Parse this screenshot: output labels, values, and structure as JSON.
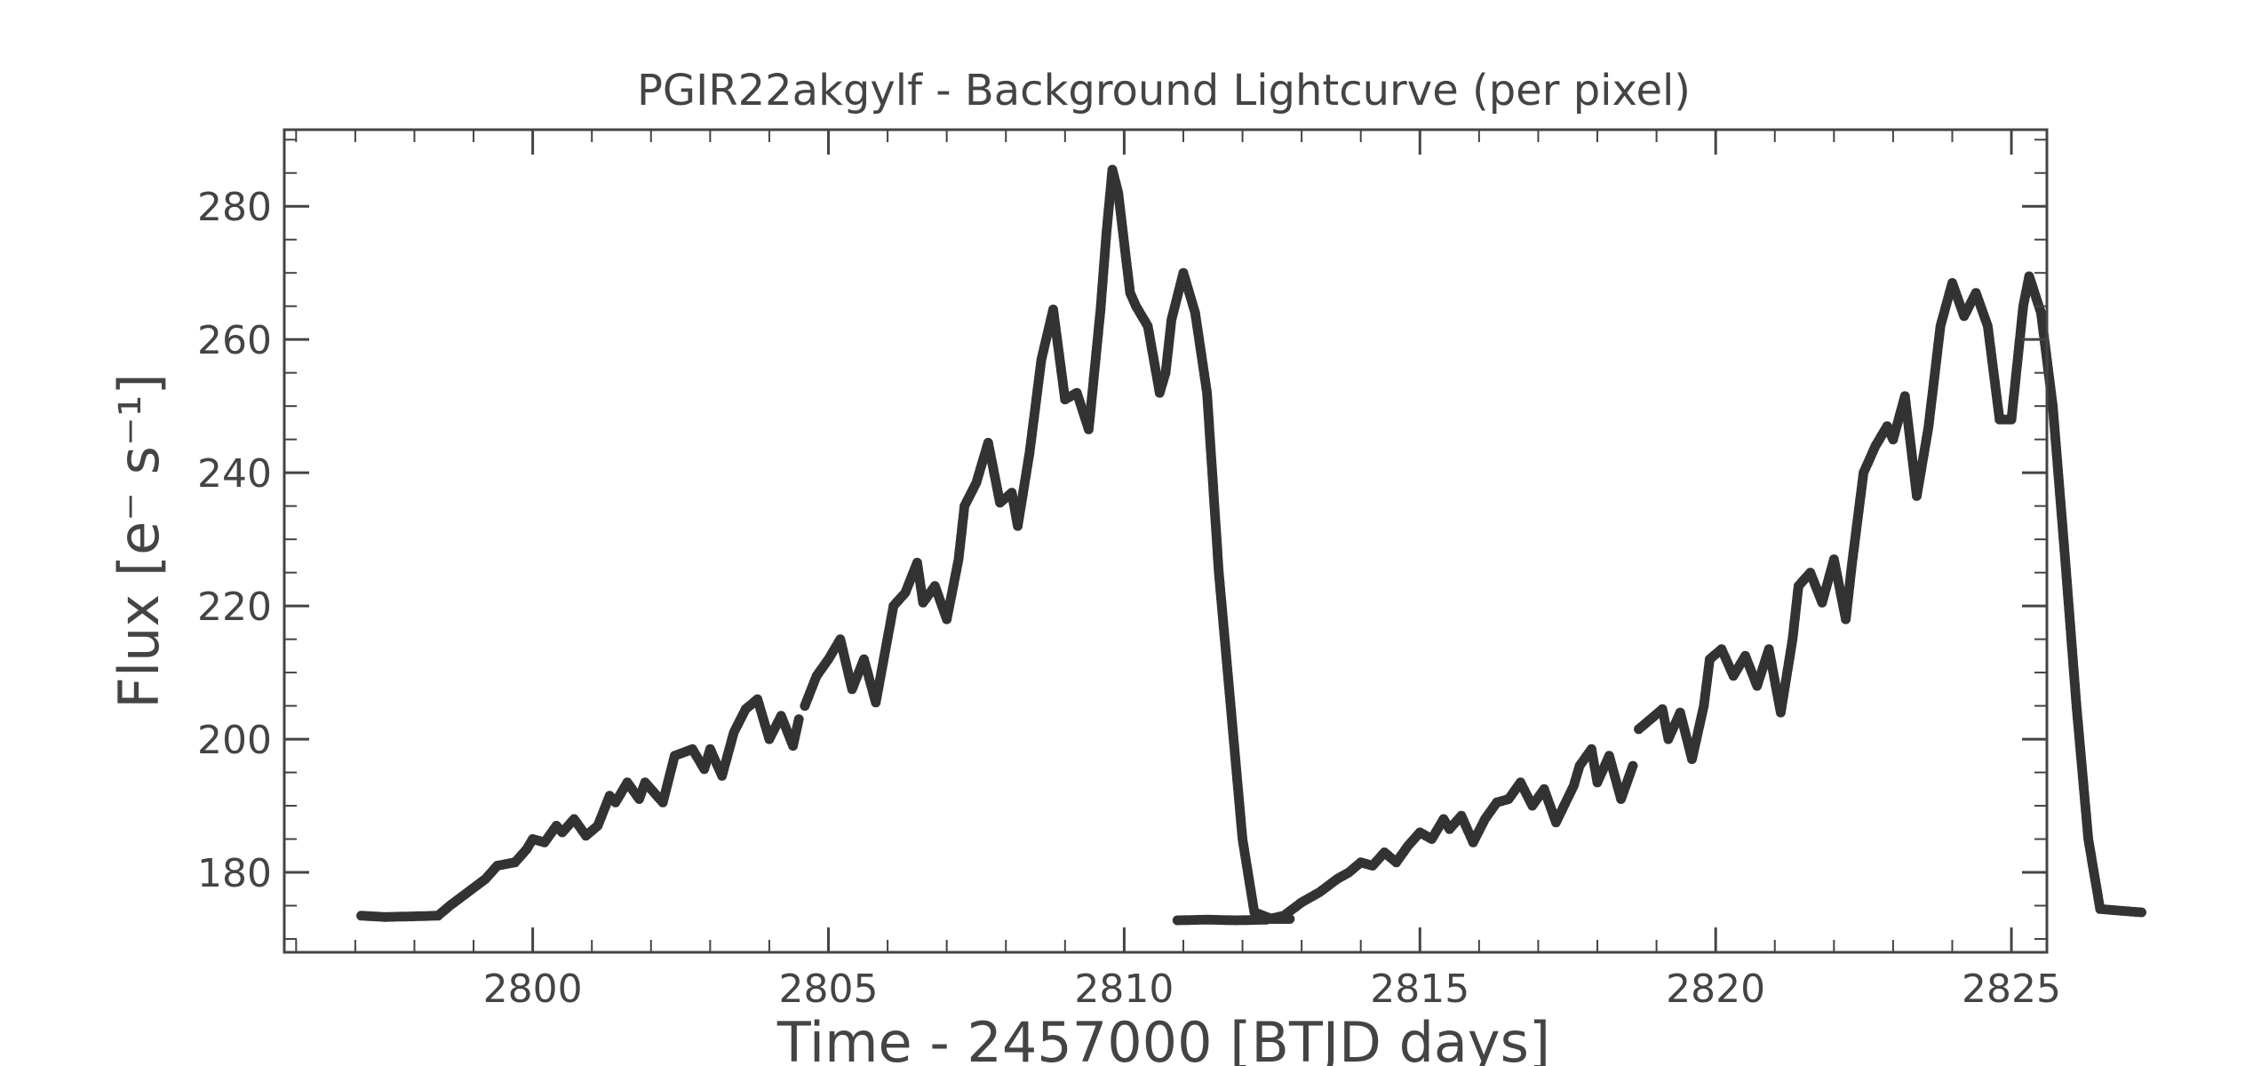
{
  "chart_data": {
    "type": "scatter",
    "title": "PGIR22akgylf  - Background Lightcurve (per pixel)",
    "xlabel": "Time - 2457000 [BTJD days]",
    "ylabel": "Flux [e⁻ s⁻¹]",
    "xlim": [
      2795.8,
      2825.6
    ],
    "ylim": [
      168,
      291.5
    ],
    "x_ticks": [
      2800,
      2805,
      2810,
      2815,
      2820,
      2825
    ],
    "y_ticks": [
      180,
      200,
      220,
      240,
      260,
      280
    ],
    "grid": false,
    "marker_color": "#333333",
    "series": [
      {
        "segments": [
          [
            [
              2797.1,
              173.5
            ],
            [
              2797.5,
              173.3
            ],
            [
              2798.0,
              173.4
            ],
            [
              2798.4,
              173.5
            ],
            [
              2798.6,
              175.0
            ],
            [
              2798.9,
              177.0
            ],
            [
              2799.2,
              179.0
            ],
            [
              2799.4,
              181.0
            ],
            [
              2799.7,
              181.5
            ],
            [
              2799.9,
              183.5
            ],
            [
              2800.0,
              185.0
            ],
            [
              2800.2,
              184.5
            ],
            [
              2800.4,
              187.0
            ],
            [
              2800.5,
              186.0
            ],
            [
              2800.7,
              188.0
            ],
            [
              2800.9,
              185.5
            ],
            [
              2801.1,
              187.0
            ],
            [
              2801.3,
              191.5
            ],
            [
              2801.4,
              190.5
            ],
            [
              2801.6,
              193.5
            ],
            [
              2801.8,
              191.0
            ],
            [
              2801.9,
              193.5
            ],
            [
              2802.2,
              190.5
            ],
            [
              2802.4,
              197.5
            ],
            [
              2802.7,
              198.5
            ],
            [
              2802.9,
              195.5
            ],
            [
              2803.0,
              198.5
            ],
            [
              2803.2,
              194.5
            ],
            [
              2803.4,
              201.0
            ],
            [
              2803.6,
              204.5
            ],
            [
              2803.8,
              206.0
            ],
            [
              2804.0,
              200.0
            ],
            [
              2804.2,
              203.5
            ],
            [
              2804.4,
              199.0
            ],
            [
              2804.5,
              203.0
            ]
          ],
          [
            [
              2804.6,
              205.0
            ],
            [
              2804.8,
              209.5
            ],
            [
              2805.0,
              212.0
            ],
            [
              2805.2,
              215.0
            ],
            [
              2805.4,
              207.5
            ],
            [
              2805.6,
              212.0
            ],
            [
              2805.8,
              205.5
            ],
            [
              2806.1,
              220.0
            ],
            [
              2806.3,
              222.0
            ],
            [
              2806.5,
              226.5
            ],
            [
              2806.6,
              220.5
            ],
            [
              2806.8,
              223.0
            ],
            [
              2807.0,
              218.0
            ],
            [
              2807.2,
              227.0
            ],
            [
              2807.3,
              235.0
            ],
            [
              2807.5,
              238.5
            ],
            [
              2807.7,
              244.5
            ],
            [
              2807.9,
              235.5
            ],
            [
              2808.1,
              237.0
            ],
            [
              2808.2,
              232.0
            ],
            [
              2808.4,
              243.0
            ],
            [
              2808.6,
              257.0
            ],
            [
              2808.8,
              264.5
            ],
            [
              2809.0,
              251.0
            ],
            [
              2809.2,
              252.0
            ],
            [
              2809.4,
              246.5
            ],
            [
              2809.6,
              264.5
            ],
            [
              2809.7,
              276.0
            ],
            [
              2809.8,
              285.5
            ],
            [
              2809.9,
              282.0
            ],
            [
              2810.1,
              267.0
            ],
            [
              2810.2,
              265.0
            ],
            [
              2810.4,
              262.0
            ],
            [
              2810.6,
              252.0
            ],
            [
              2810.7,
              255.0
            ],
            [
              2810.8,
              263.0
            ],
            [
              2811.0,
              270.0
            ],
            [
              2811.2,
              264.0
            ],
            [
              2811.4,
              252.0
            ],
            [
              2811.6,
              225.0
            ],
            [
              2811.8,
              205.0
            ],
            [
              2812.0,
              185.0
            ],
            [
              2812.2,
              174.0
            ],
            [
              2812.5,
              173.0
            ],
            [
              2812.8,
              173.0
            ]
          ]
        ]
      },
      {
        "segments": [
          [
            [
              2810.9,
              172.8
            ],
            [
              2811.4,
              172.9
            ],
            [
              2811.9,
              172.8
            ],
            [
              2812.4,
              172.9
            ],
            [
              2812.7,
              173.5
            ],
            [
              2813.0,
              175.5
            ],
            [
              2813.3,
              177.0
            ],
            [
              2813.6,
              179.0
            ],
            [
              2813.8,
              180.0
            ],
            [
              2814.0,
              181.5
            ],
            [
              2814.2,
              181.0
            ],
            [
              2814.4,
              183.0
            ],
            [
              2814.6,
              181.5
            ],
            [
              2814.8,
              184.0
            ],
            [
              2815.0,
              186.0
            ],
            [
              2815.2,
              185.0
            ],
            [
              2815.4,
              188.0
            ],
            [
              2815.5,
              186.5
            ],
            [
              2815.7,
              188.5
            ],
            [
              2815.9,
              184.5
            ],
            [
              2816.1,
              188.0
            ],
            [
              2816.3,
              190.5
            ],
            [
              2816.5,
              191.0
            ],
            [
              2816.7,
              193.5
            ],
            [
              2816.9,
              190.0
            ],
            [
              2817.1,
              192.5
            ],
            [
              2817.3,
              187.5
            ],
            [
              2817.6,
              193.0
            ],
            [
              2817.7,
              196.0
            ],
            [
              2817.9,
              198.5
            ],
            [
              2818.0,
              193.5
            ],
            [
              2818.2,
              197.5
            ],
            [
              2818.4,
              191.0
            ],
            [
              2818.6,
              196.0
            ]
          ],
          [
            [
              2818.7,
              201.5
            ],
            [
              2818.9,
              203.0
            ],
            [
              2819.1,
              204.5
            ],
            [
              2819.2,
              200.0
            ],
            [
              2819.4,
              204.0
            ],
            [
              2819.6,
              197.0
            ],
            [
              2819.8,
              205.0
            ],
            [
              2819.9,
              212.0
            ],
            [
              2820.1,
              213.5
            ],
            [
              2820.3,
              209.5
            ],
            [
              2820.5,
              212.5
            ],
            [
              2820.7,
              208.0
            ],
            [
              2820.9,
              213.5
            ],
            [
              2821.1,
              204.0
            ],
            [
              2821.3,
              215.0
            ],
            [
              2821.4,
              223.0
            ],
            [
              2821.6,
              225.0
            ],
            [
              2821.8,
              220.5
            ],
            [
              2822.0,
              227.0
            ],
            [
              2822.2,
              218.0
            ],
            [
              2822.3,
              226.0
            ],
            [
              2822.5,
              240.0
            ],
            [
              2822.7,
              244.0
            ],
            [
              2822.9,
              247.0
            ],
            [
              2823.0,
              245.0
            ],
            [
              2823.2,
              251.5
            ],
            [
              2823.4,
              236.5
            ],
            [
              2823.6,
              247.0
            ],
            [
              2823.8,
              262.0
            ],
            [
              2824.0,
              268.5
            ],
            [
              2824.2,
              263.5
            ],
            [
              2824.4,
              267.0
            ],
            [
              2824.6,
              262.0
            ],
            [
              2824.8,
              248.0
            ],
            [
              2825.0,
              248.0
            ],
            [
              2825.2,
              265.0
            ],
            [
              2825.3,
              269.5
            ],
            [
              2825.5,
              264.0
            ],
            [
              2825.7,
              250.0
            ],
            [
              2825.9,
              228.0
            ],
            [
              2826.1,
              205.0
            ],
            [
              2826.3,
              185.0
            ],
            [
              2826.5,
              174.5
            ],
            [
              2826.9,
              174.2
            ],
            [
              2827.2,
              174.0
            ]
          ]
        ]
      }
    ]
  }
}
